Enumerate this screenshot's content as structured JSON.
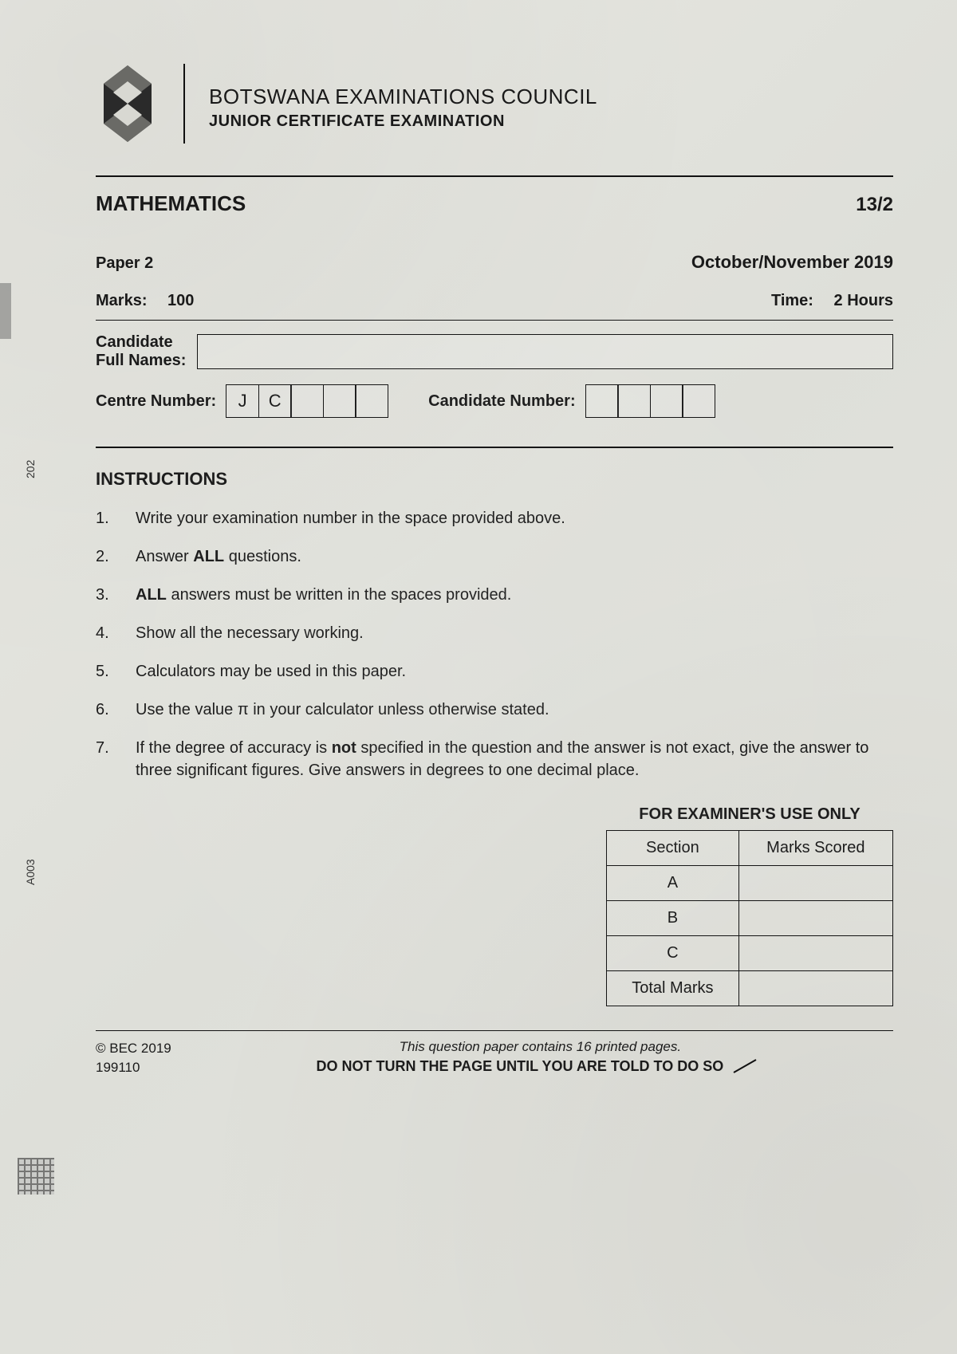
{
  "header": {
    "org_line1": "BOTSWANA EXAMINATIONS COUNCIL",
    "org_line2": "JUNIOR CERTIFICATE EXAMINATION"
  },
  "title": {
    "subject": "MATHEMATICS",
    "code": "13/2",
    "paper": "Paper 2",
    "session": "October/November 2019",
    "marks_label": "Marks:",
    "marks_value": "100",
    "time_label": "Time:",
    "time_value": "2 Hours"
  },
  "candidate": {
    "full_names_label": "Candidate\nFull Names:",
    "centre_label": "Centre Number:",
    "centre_cells": [
      "J",
      "C",
      "",
      "",
      ""
    ],
    "cand_label": "Candidate Number:",
    "cand_cells": [
      "",
      "",
      "",
      ""
    ]
  },
  "instructions": {
    "title": "INSTRUCTIONS",
    "items": [
      "Write your examination number in the space provided above.",
      "Answer <b>ALL</b> questions.",
      "<b>ALL</b> answers must be written in the spaces provided.",
      "Show all the necessary working.",
      "Calculators may be used in this paper.",
      "Use the value π in your calculator unless otherwise stated.",
      "If the degree of accuracy is <b>not</b> specified in the question and the answer is not exact, give the answer to three significant figures. Give answers in degrees to one decimal place."
    ]
  },
  "examiner": {
    "caption": "FOR EXAMINER'S USE ONLY",
    "headers": [
      "Section",
      "Marks Scored"
    ],
    "rows": [
      "A",
      "B",
      "C"
    ],
    "total_label": "Total Marks"
  },
  "footer": {
    "copyright": "© BEC 2019",
    "ref": "199110",
    "line1": "This question paper contains 16 printed pages.",
    "line2": "DO NOT TURN THE PAGE UNTIL YOU ARE TOLD TO DO SO"
  },
  "side": {
    "code1": "202",
    "code2": "A003"
  },
  "colors": {
    "ink": "#1a1a1a",
    "paper": "#e4e4de",
    "border": "#111111"
  }
}
